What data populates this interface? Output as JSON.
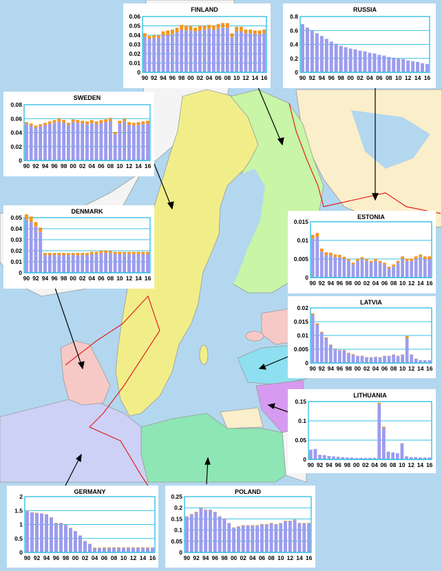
{
  "colors": {
    "base": "#9c9cee",
    "top": "#f7941d",
    "frame": "#36c0e6",
    "grid": "#36c0e6"
  },
  "chart_data": [
    {
      "type": "bar",
      "stacked": true,
      "title": "FINLAND",
      "categories": [
        "90",
        "91",
        "92",
        "93",
        "94",
        "95",
        "96",
        "97",
        "98",
        "99",
        "00",
        "01",
        "02",
        "03",
        "04",
        "05",
        "06",
        "07",
        "08",
        "09",
        "10",
        "11",
        "12",
        "13",
        "14",
        "15",
        "16"
      ],
      "x_tick_labels": [
        "90",
        "92",
        "94",
        "96",
        "98",
        "00",
        "02",
        "04",
        "06",
        "08",
        "10",
        "12",
        "14",
        "16"
      ],
      "ylim": [
        0,
        0.06
      ],
      "y_tick_labels": [
        "0",
        "0.01",
        "0.02",
        "0.03",
        "0.04",
        "0.05",
        "0.06"
      ],
      "series": [
        {
          "values": [
            0.038,
            0.036,
            0.037,
            0.037,
            0.04,
            0.04,
            0.041,
            0.043,
            0.046,
            0.045,
            0.045,
            0.044,
            0.045,
            0.046,
            0.047,
            0.046,
            0.047,
            0.048,
            0.048,
            0.038,
            0.044,
            0.044,
            0.042,
            0.042,
            0.041,
            0.041,
            0.042
          ]
        },
        {
          "values": [
            0.004,
            0.003,
            0.003,
            0.003,
            0.004,
            0.005,
            0.005,
            0.005,
            0.005,
            0.005,
            0.005,
            0.004,
            0.005,
            0.004,
            0.004,
            0.004,
            0.005,
            0.005,
            0.005,
            0.004,
            0.005,
            0.005,
            0.004,
            0.004,
            0.004,
            0.004,
            0.004
          ]
        }
      ]
    },
    {
      "type": "bar",
      "stacked": true,
      "title": "RUSSIA",
      "categories": [
        "90",
        "91",
        "92",
        "93",
        "94",
        "95",
        "96",
        "97",
        "98",
        "99",
        "00",
        "01",
        "02",
        "03",
        "04",
        "05",
        "06",
        "07",
        "08",
        "09",
        "10",
        "11",
        "12",
        "13",
        "14",
        "15",
        "16"
      ],
      "x_tick_labels": [
        "90",
        "92",
        "94",
        "96",
        "98",
        "00",
        "02",
        "04",
        "06",
        "08",
        "10",
        "12",
        "14",
        "16"
      ],
      "ylim": [
        0,
        0.8
      ],
      "y_tick_labels": [
        "0",
        "0.2",
        "0.4",
        "0.6",
        "0.8"
      ],
      "series": [
        {
          "values": [
            0.69,
            0.64,
            0.6,
            0.56,
            0.52,
            0.48,
            0.44,
            0.41,
            0.38,
            0.36,
            0.34,
            0.33,
            0.31,
            0.3,
            0.28,
            0.27,
            0.25,
            0.24,
            0.22,
            0.21,
            0.2,
            0.19,
            0.17,
            0.16,
            0.15,
            0.13,
            0.12
          ]
        },
        {
          "values": [
            0,
            0,
            0,
            0,
            0,
            0,
            0,
            0,
            0,
            0,
            0,
            0,
            0,
            0,
            0,
            0,
            0,
            0,
            0,
            0,
            0,
            0,
            0,
            0,
            0,
            0,
            0
          ]
        }
      ]
    },
    {
      "type": "bar",
      "stacked": true,
      "title": "SWEDEN",
      "categories": [
        "90",
        "91",
        "92",
        "93",
        "94",
        "95",
        "96",
        "97",
        "98",
        "99",
        "00",
        "01",
        "02",
        "03",
        "04",
        "05",
        "06",
        "07",
        "08",
        "09",
        "10",
        "11",
        "12",
        "13",
        "14",
        "15",
        "16"
      ],
      "x_tick_labels": [
        "90",
        "92",
        "94",
        "96",
        "98",
        "00",
        "02",
        "04",
        "06",
        "08",
        "10",
        "12",
        "14",
        "16"
      ],
      "ylim": [
        0,
        0.08
      ],
      "y_tick_labels": [
        "0",
        "0.02",
        "0.04",
        "0.06",
        "0.08"
      ],
      "series": [
        {
          "values": [
            0.052,
            0.05,
            0.047,
            0.049,
            0.051,
            0.053,
            0.054,
            0.056,
            0.054,
            0.051,
            0.055,
            0.054,
            0.053,
            0.052,
            0.054,
            0.052,
            0.054,
            0.055,
            0.056,
            0.038,
            0.053,
            0.056,
            0.051,
            0.05,
            0.051,
            0.052,
            0.053
          ]
        },
        {
          "values": [
            0.003,
            0.003,
            0.003,
            0.003,
            0.003,
            0.003,
            0.004,
            0.004,
            0.004,
            0.003,
            0.004,
            0.004,
            0.004,
            0.004,
            0.004,
            0.004,
            0.004,
            0.004,
            0.005,
            0.003,
            0.004,
            0.004,
            0.004,
            0.004,
            0.004,
            0.004,
            0.004
          ]
        }
      ]
    },
    {
      "type": "bar",
      "stacked": true,
      "title": "DENMARK",
      "categories": [
        "90",
        "91",
        "92",
        "93",
        "94",
        "95",
        "96",
        "97",
        "98",
        "99",
        "00",
        "01",
        "02",
        "03",
        "04",
        "05",
        "06",
        "07",
        "08",
        "09",
        "10",
        "11",
        "12",
        "13",
        "14",
        "15",
        "16"
      ],
      "x_tick_labels": [
        "90",
        "92",
        "94",
        "96",
        "98",
        "00",
        "02",
        "04",
        "06",
        "08",
        "10",
        "12",
        "14",
        "16"
      ],
      "ylim": [
        0,
        0.05
      ],
      "y_tick_labels": [
        "0",
        "0.01",
        "0.02",
        "0.03",
        "0.04",
        "0.05"
      ],
      "series": [
        {
          "values": [
            0.048,
            0.046,
            0.042,
            0.037,
            0.016,
            0.016,
            0.016,
            0.016,
            0.016,
            0.016,
            0.016,
            0.016,
            0.016,
            0.016,
            0.017,
            0.017,
            0.018,
            0.018,
            0.018,
            0.017,
            0.017,
            0.017,
            0.017,
            0.017,
            0.017,
            0.017,
            0.017
          ]
        },
        {
          "values": [
            0.005,
            0.005,
            0.004,
            0.004,
            0.002,
            0.002,
            0.002,
            0.002,
            0.002,
            0.002,
            0.002,
            0.002,
            0.002,
            0.002,
            0.002,
            0.002,
            0.002,
            0.002,
            0.002,
            0.002,
            0.002,
            0.002,
            0.002,
            0.002,
            0.002,
            0.002,
            0.002
          ]
        }
      ]
    },
    {
      "type": "bar",
      "stacked": true,
      "title": "ESTONIA",
      "categories": [
        "90",
        "91",
        "92",
        "93",
        "94",
        "95",
        "96",
        "97",
        "98",
        "99",
        "00",
        "01",
        "02",
        "03",
        "04",
        "05",
        "06",
        "07",
        "08",
        "09",
        "10",
        "11",
        "12",
        "13",
        "14",
        "15",
        "16"
      ],
      "x_tick_labels": [
        "90",
        "92",
        "94",
        "96",
        "98",
        "00",
        "02",
        "04",
        "06",
        "08",
        "10",
        "12",
        "14",
        "16"
      ],
      "ylim": [
        0,
        0.015
      ],
      "y_tick_labels": [
        "0",
        "0.005",
        "0.01",
        "0.015"
      ],
      "series": [
        {
          "values": [
            0.0105,
            0.011,
            0.007,
            0.006,
            0.006,
            0.0055,
            0.0055,
            0.005,
            0.0045,
            0.0035,
            0.0045,
            0.005,
            0.0045,
            0.004,
            0.0045,
            0.004,
            0.0035,
            0.0025,
            0.003,
            0.004,
            0.005,
            0.0045,
            0.0045,
            0.005,
            0.0055,
            0.005,
            0.005
          ]
        },
        {
          "values": [
            0.001,
            0.001,
            0.0008,
            0.0008,
            0.0007,
            0.0007,
            0.0006,
            0.0006,
            0.0005,
            0.0005,
            0.0005,
            0.0005,
            0.0005,
            0.0005,
            0.0005,
            0.0005,
            0.0005,
            0.0004,
            0.0005,
            0.0005,
            0.0007,
            0.0006,
            0.0006,
            0.0007,
            0.0007,
            0.0007,
            0.0007
          ]
        }
      ]
    },
    {
      "type": "bar",
      "stacked": true,
      "title": "LATVIA",
      "categories": [
        "90",
        "91",
        "92",
        "93",
        "94",
        "95",
        "96",
        "97",
        "98",
        "99",
        "00",
        "01",
        "02",
        "03",
        "04",
        "05",
        "06",
        "07",
        "08",
        "09",
        "10",
        "11",
        "12",
        "13",
        "14",
        "15",
        "16"
      ],
      "x_tick_labels": [
        "90",
        "92",
        "94",
        "96",
        "98",
        "00",
        "02",
        "04",
        "06",
        "08",
        "10",
        "12",
        "14",
        "16"
      ],
      "ylim": [
        0,
        0.02
      ],
      "y_tick_labels": [
        "0",
        "0.005",
        "0.01",
        "0.015",
        "0.02"
      ],
      "series": [
        {
          "values": [
            0.0175,
            0.014,
            0.011,
            0.009,
            0.0065,
            0.005,
            0.0045,
            0.0045,
            0.0035,
            0.003,
            0.0025,
            0.0025,
            0.002,
            0.002,
            0.0022,
            0.002,
            0.0025,
            0.0025,
            0.003,
            0.0025,
            0.003,
            0.009,
            0.003,
            0.0015,
            0.001,
            0.001,
            0.001
          ]
        },
        {
          "values": [
            0.0005,
            0.0004,
            0.0003,
            0.0003,
            0.0002,
            0.0002,
            0.0002,
            0.0002,
            0.0002,
            0.0002,
            0.0001,
            0.0001,
            0.0001,
            0.0001,
            0.0001,
            0.0001,
            0.0001,
            0.0001,
            0.0001,
            0.0001,
            0.0001,
            0.0008,
            0.0001,
            0.0001,
            0,
            0,
            0
          ]
        }
      ]
    },
    {
      "type": "bar",
      "stacked": true,
      "title": "LITHUANIA",
      "categories": [
        "90",
        "91",
        "92",
        "93",
        "94",
        "95",
        "96",
        "97",
        "98",
        "99",
        "00",
        "01",
        "02",
        "03",
        "04",
        "05",
        "06",
        "07",
        "08",
        "09",
        "10",
        "11",
        "12",
        "13",
        "14",
        "15",
        "16"
      ],
      "x_tick_labels": [
        "90",
        "92",
        "94",
        "96",
        "98",
        "00",
        "02",
        "04",
        "06",
        "08",
        "10",
        "12",
        "14",
        "16"
      ],
      "ylim": [
        0,
        0.15
      ],
      "y_tick_labels": [
        "0",
        "0.05",
        "0.1",
        "0.15"
      ],
      "series": [
        {
          "values": [
            0.025,
            0.027,
            0.012,
            0.011,
            0.009,
            0.008,
            0.007,
            0.006,
            0.005,
            0.005,
            0.004,
            0.004,
            0.004,
            0.004,
            0.004,
            0.144,
            0.082,
            0.02,
            0.018,
            0.016,
            0.041,
            0.008,
            0.006,
            0.006,
            0.005,
            0.005,
            0.005
          ]
        },
        {
          "values": [
            0,
            0,
            0,
            0,
            0,
            0,
            0,
            0,
            0,
            0,
            0,
            0,
            0,
            0,
            0,
            0.003,
            0.003,
            0,
            0,
            0,
            0.001,
            0,
            0,
            0,
            0,
            0,
            0
          ]
        }
      ]
    },
    {
      "type": "bar",
      "stacked": true,
      "title": "GERMANY",
      "categories": [
        "90",
        "91",
        "92",
        "93",
        "94",
        "95",
        "96",
        "97",
        "98",
        "99",
        "00",
        "01",
        "02",
        "03",
        "04",
        "05",
        "06",
        "07",
        "08",
        "09",
        "10",
        "11",
        "12",
        "13",
        "14",
        "15",
        "16"
      ],
      "x_tick_labels": [
        "90",
        "92",
        "94",
        "96",
        "98",
        "00",
        "02",
        "04",
        "06",
        "08",
        "10",
        "12",
        "14",
        "16"
      ],
      "ylim": [
        0,
        2
      ],
      "y_tick_labels": [
        "0",
        "0.5",
        "1",
        "1.5",
        "2"
      ],
      "series": [
        {
          "values": [
            1.47,
            1.43,
            1.41,
            1.39,
            1.36,
            1.25,
            1.05,
            1.05,
            0.98,
            0.87,
            0.76,
            0.6,
            0.4,
            0.3,
            0.15,
            0.15,
            0.16,
            0.16,
            0.16,
            0.16,
            0.16,
            0.16,
            0.16,
            0.16,
            0.16,
            0.16,
            0.16
          ]
        },
        {
          "values": [
            0.01,
            0.01,
            0.01,
            0.01,
            0.01,
            0.01,
            0.01,
            0.01,
            0.01,
            0.01,
            0.01,
            0.01,
            0.01,
            0.01,
            0.02,
            0.02,
            0.02,
            0.02,
            0.02,
            0.02,
            0.02,
            0.02,
            0.02,
            0.02,
            0.02,
            0.02,
            0.02
          ]
        }
      ]
    },
    {
      "type": "bar",
      "stacked": true,
      "title": "POLAND",
      "categories": [
        "90",
        "91",
        "92",
        "93",
        "94",
        "95",
        "96",
        "97",
        "98",
        "99",
        "00",
        "01",
        "02",
        "03",
        "04",
        "05",
        "06",
        "07",
        "08",
        "09",
        "10",
        "11",
        "12",
        "13",
        "14",
        "15",
        "16"
      ],
      "x_tick_labels": [
        "90",
        "92",
        "94",
        "96",
        "98",
        "00",
        "02",
        "04",
        "06",
        "08",
        "10",
        "12",
        "14",
        "16"
      ],
      "ylim": [
        0,
        0.25
      ],
      "y_tick_labels": [
        "0",
        "0.05",
        "0.1",
        "0.15",
        "0.2",
        "0.25"
      ],
      "series": [
        {
          "values": [
            0.16,
            0.17,
            0.18,
            0.2,
            0.19,
            0.19,
            0.18,
            0.16,
            0.15,
            0.13,
            0.11,
            0.115,
            0.12,
            0.12,
            0.12,
            0.12,
            0.125,
            0.125,
            0.13,
            0.125,
            0.13,
            0.14,
            0.14,
            0.145,
            0.13,
            0.13,
            0.13
          ]
        },
        {
          "values": [
            0.002,
            0.002,
            0.002,
            0.002,
            0.002,
            0.002,
            0.002,
            0.002,
            0.002,
            0.002,
            0.002,
            0.002,
            0.002,
            0.002,
            0.002,
            0.002,
            0.002,
            0.002,
            0.002,
            0.002,
            0.002,
            0.002,
            0.002,
            0.002,
            0.002,
            0.002,
            0.002
          ]
        }
      ]
    }
  ]
}
